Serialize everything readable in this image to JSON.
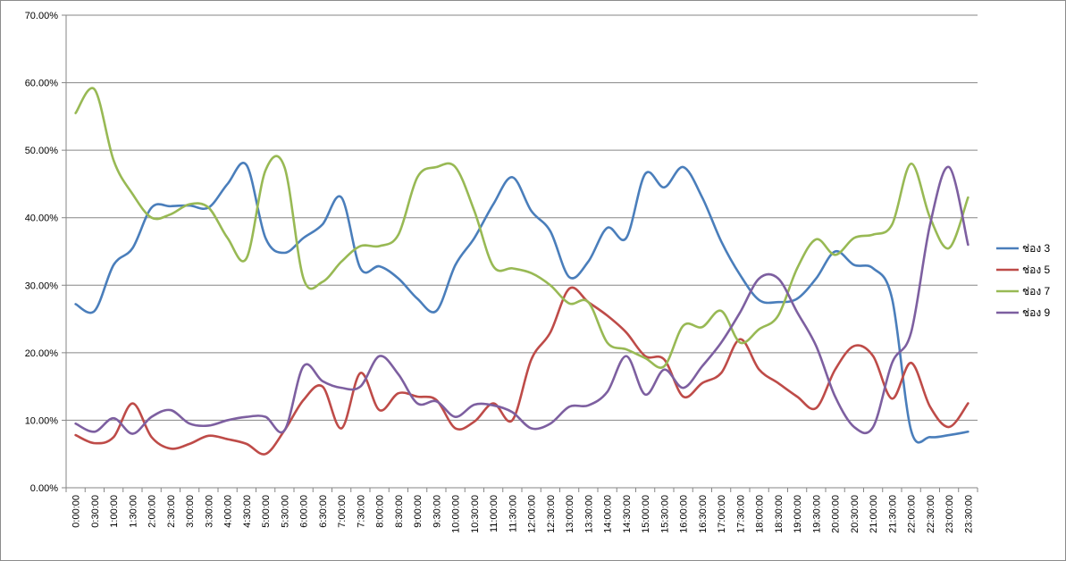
{
  "chart_data": {
    "type": "line",
    "title": "",
    "xlabel": "",
    "ylabel": "",
    "ylim": [
      0,
      0.7
    ],
    "y_ticks": [
      0,
      0.1,
      0.2,
      0.3,
      0.4,
      0.5,
      0.6,
      0.7
    ],
    "y_tick_labels": [
      "0.00%",
      "10.00%",
      "20.00%",
      "30.00%",
      "40.00%",
      "50.00%",
      "60.00%",
      "70.00%"
    ],
    "grid": "horizontal",
    "legend_position": "right",
    "smooth": true,
    "categories": [
      "0:00:00",
      "0:30:00",
      "1:00:00",
      "1:30:00",
      "2:00:00",
      "2:30:00",
      "3:00:00",
      "3:30:00",
      "4:00:00",
      "4:30:00",
      "5:00:00",
      "5:30:00",
      "6:00:00",
      "6:30:00",
      "7:00:00",
      "7:30:00",
      "8:00:00",
      "8:30:00",
      "9:00:00",
      "9:30:00",
      "10:00:00",
      "10:30:00",
      "11:00:00",
      "11:30:00",
      "12:00:00",
      "12:30:00",
      "13:00:00",
      "13:30:00",
      "14:00:00",
      "14:30:00",
      "15:00:00",
      "15:30:00",
      "16:00:00",
      "16:30:00",
      "17:00:00",
      "17:30:00",
      "18:00:00",
      "18:30:00",
      "19:00:00",
      "19:30:00",
      "20:00:00",
      "20:30:00",
      "21:00:00",
      "21:30:00",
      "22:00:00",
      "22:30:00",
      "23:00:00",
      "23:30:00"
    ],
    "series": [
      {
        "name": "ช่อง 3",
        "color": "#4a7ebb",
        "values": [
          0.272,
          0.262,
          0.33,
          0.355,
          0.415,
          0.417,
          0.418,
          0.415,
          0.45,
          0.478,
          0.37,
          0.348,
          0.37,
          0.39,
          0.43,
          0.325,
          0.328,
          0.31,
          0.28,
          0.262,
          0.33,
          0.37,
          0.42,
          0.46,
          0.41,
          0.38,
          0.312,
          0.335,
          0.385,
          0.37,
          0.465,
          0.445,
          0.475,
          0.43,
          0.365,
          0.315,
          0.278,
          0.275,
          0.28,
          0.31,
          0.35,
          0.33,
          0.325,
          0.28,
          0.085,
          0.075,
          0.078,
          0.083
        ]
      },
      {
        "name": "ช่อง 5",
        "color": "#be4b48",
        "values": [
          0.078,
          0.066,
          0.075,
          0.125,
          0.075,
          0.058,
          0.065,
          0.077,
          0.072,
          0.065,
          0.05,
          0.085,
          0.13,
          0.15,
          0.088,
          0.17,
          0.115,
          0.14,
          0.135,
          0.13,
          0.088,
          0.098,
          0.125,
          0.1,
          0.19,
          0.23,
          0.295,
          0.275,
          0.255,
          0.23,
          0.195,
          0.19,
          0.135,
          0.155,
          0.17,
          0.22,
          0.175,
          0.155,
          0.135,
          0.118,
          0.175,
          0.21,
          0.195,
          0.132,
          0.185,
          0.12,
          0.09,
          0.125
        ]
      },
      {
        "name": "ช่อง 7",
        "color": "#98b954",
        "values": [
          0.555,
          0.59,
          0.485,
          0.435,
          0.4,
          0.405,
          0.42,
          0.415,
          0.37,
          0.34,
          0.47,
          0.475,
          0.31,
          0.305,
          0.335,
          0.358,
          0.358,
          0.375,
          0.46,
          0.475,
          0.475,
          0.41,
          0.328,
          0.325,
          0.318,
          0.3,
          0.273,
          0.275,
          0.215,
          0.205,
          0.192,
          0.18,
          0.24,
          0.238,
          0.262,
          0.215,
          0.235,
          0.255,
          0.325,
          0.368,
          0.345,
          0.37,
          0.375,
          0.39,
          0.48,
          0.4,
          0.355,
          0.43
        ]
      },
      {
        "name": "ช่อง 9",
        "color": "#7d5fa0",
        "values": [
          0.095,
          0.083,
          0.103,
          0.08,
          0.105,
          0.115,
          0.095,
          0.092,
          0.1,
          0.105,
          0.105,
          0.085,
          0.18,
          0.158,
          0.148,
          0.15,
          0.195,
          0.168,
          0.125,
          0.128,
          0.105,
          0.123,
          0.122,
          0.112,
          0.088,
          0.095,
          0.12,
          0.122,
          0.142,
          0.195,
          0.138,
          0.175,
          0.148,
          0.18,
          0.215,
          0.26,
          0.31,
          0.31,
          0.26,
          0.21,
          0.135,
          0.09,
          0.09,
          0.185,
          0.23,
          0.39,
          0.475,
          0.36
        ]
      }
    ]
  }
}
